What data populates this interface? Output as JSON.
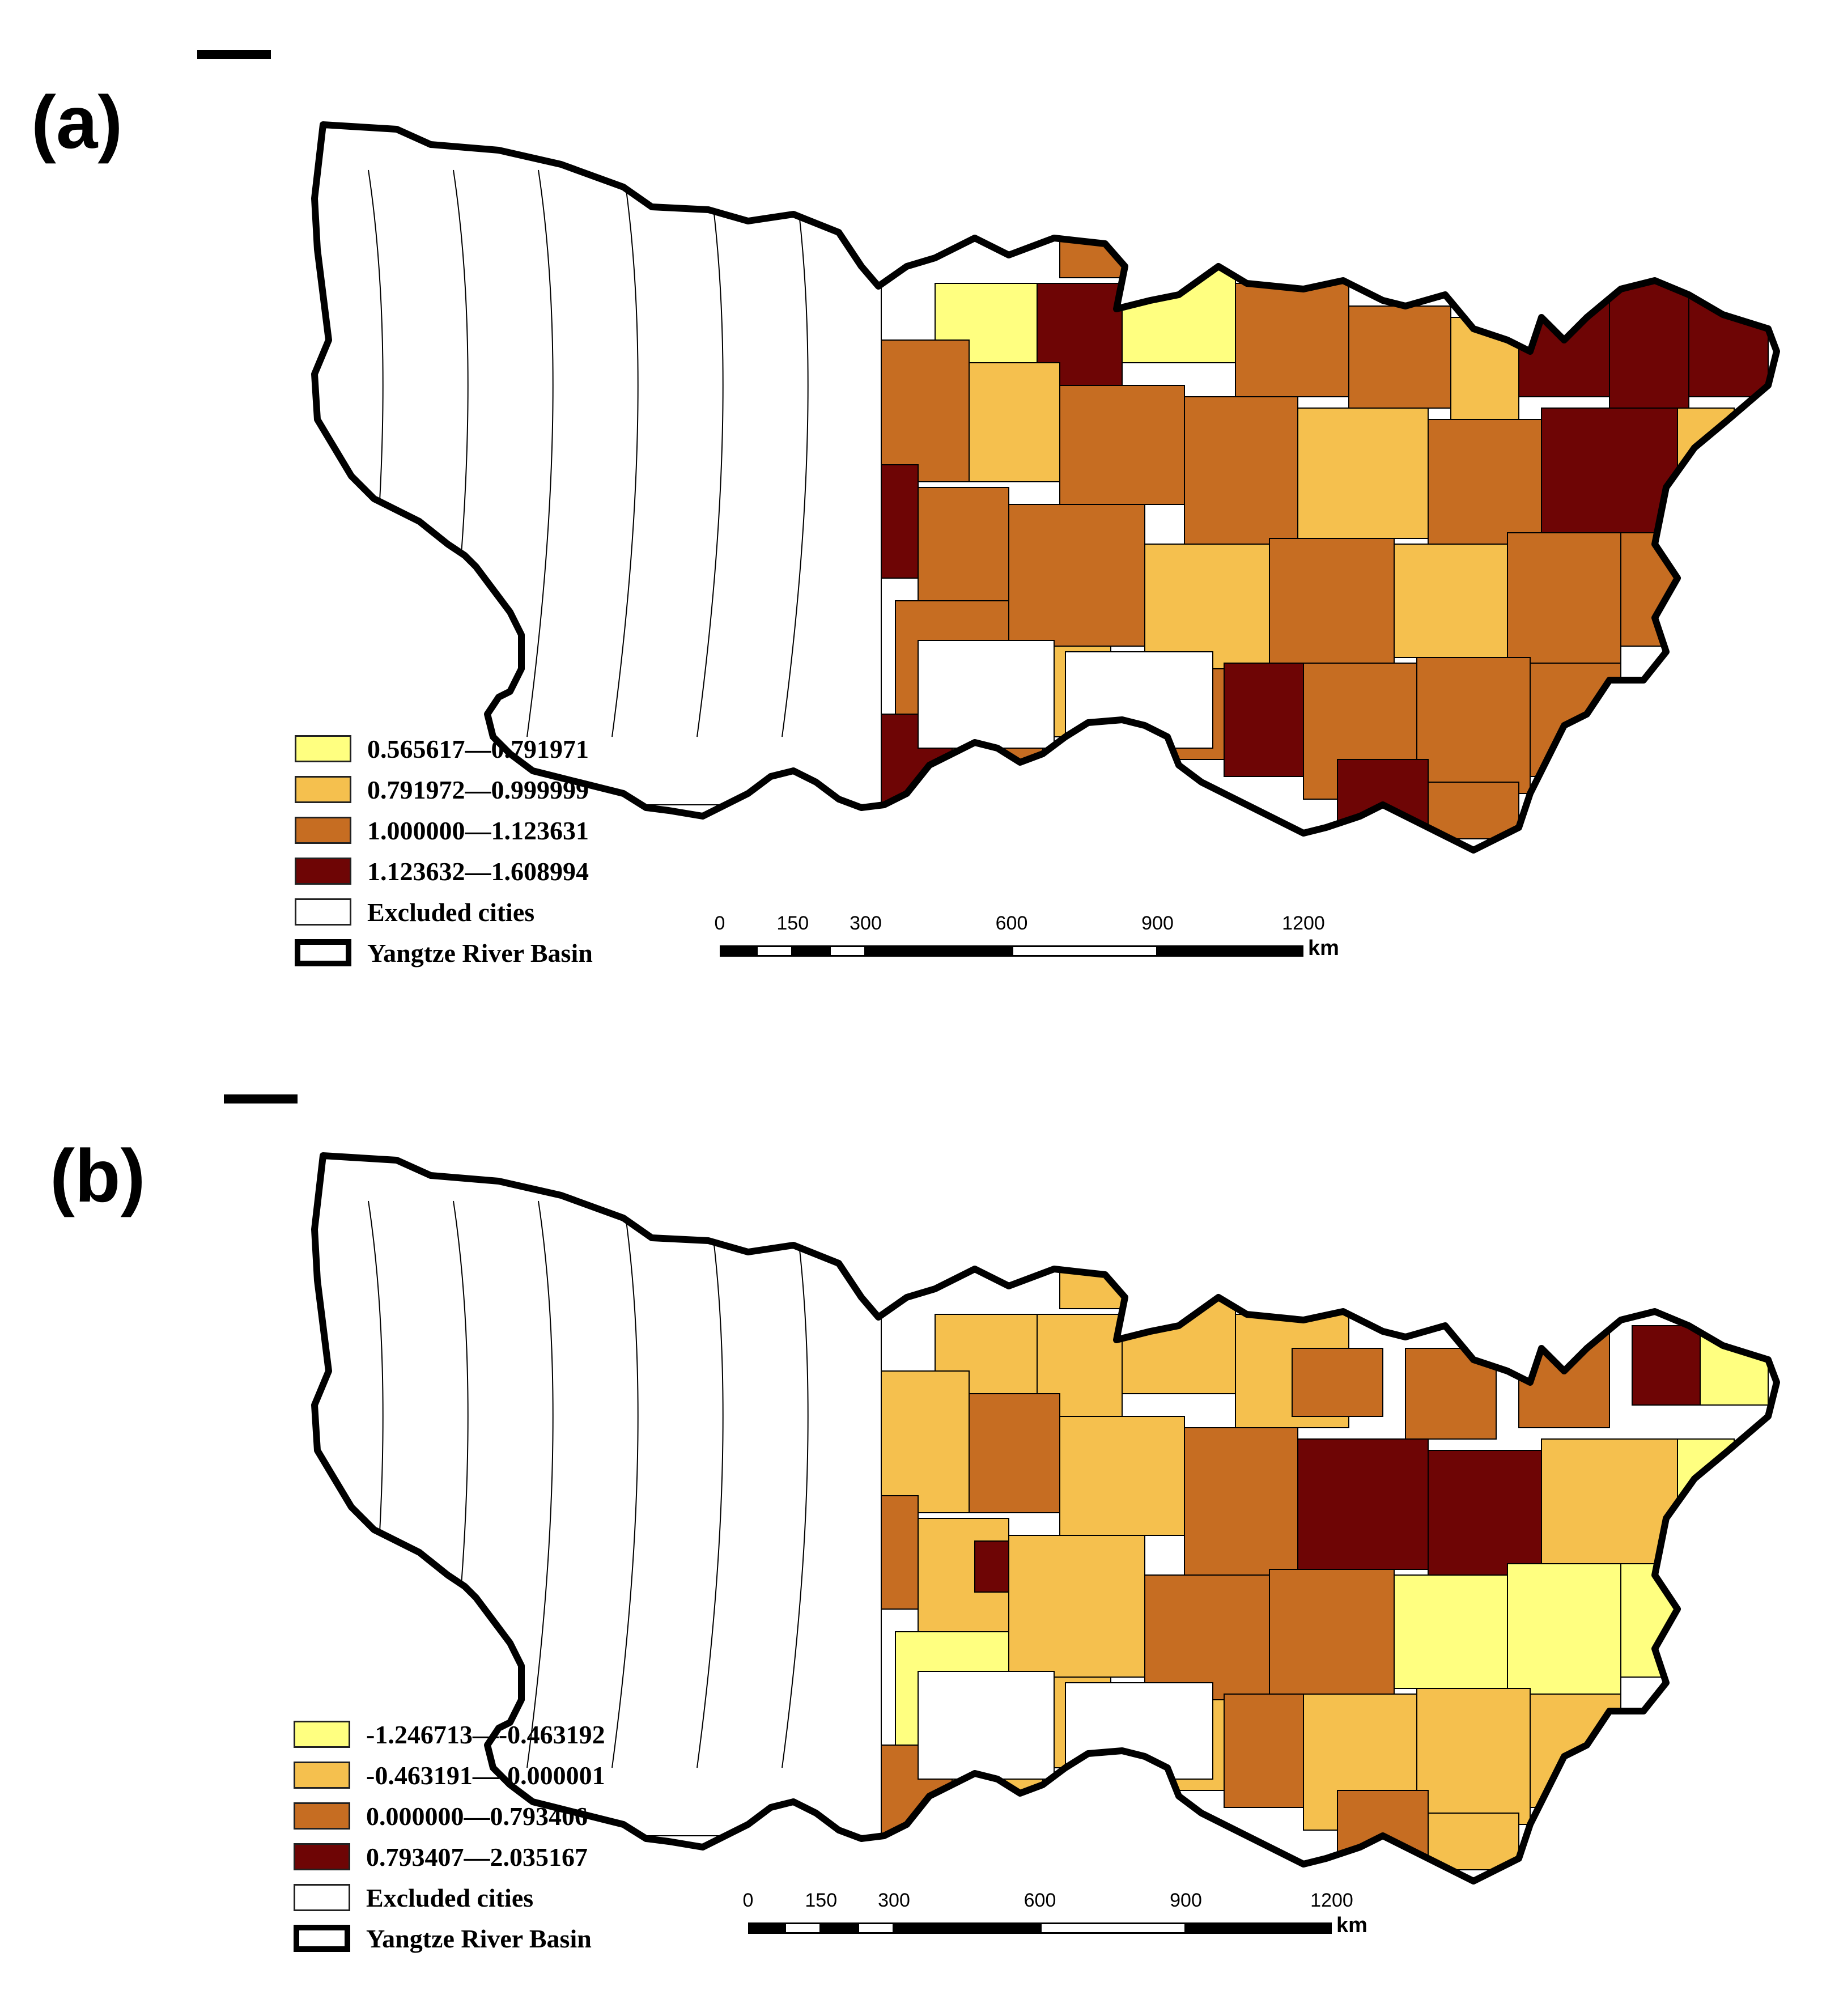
{
  "colors": {
    "c1": "#ffff80",
    "c2": "#f5c04e",
    "c3": "#c66d22",
    "c4": "#6e0505",
    "excluded": "#ffffff",
    "basin_outline": "#000000",
    "minor_fill": "#e6f7d0"
  },
  "panels": [
    {
      "label": "(a)",
      "legend": [
        {
          "text": "0.565617—0.791971",
          "color_key": "c1"
        },
        {
          "text": "0.791972—0.999999",
          "color_key": "c2"
        },
        {
          "text": "1.000000—1.123631",
          "color_key": "c3"
        },
        {
          "text": "1.123632—1.608994",
          "color_key": "c4"
        },
        {
          "text": "Excluded cities",
          "color_key": "excluded"
        },
        {
          "text": "Yangtze River Basin",
          "color_key": "basin"
        }
      ],
      "scale_labels": [
        "0",
        "150",
        "300",
        "600",
        "900",
        "1200"
      ],
      "scale_unit": "km"
    },
    {
      "label": "(b)",
      "legend": [
        {
          "text": "-1.246713—-0.463192",
          "color_key": "c1"
        },
        {
          "text": "-0.463191—-0.000001",
          "color_key": "c2"
        },
        {
          "text": "0.000000—0.793406",
          "color_key": "c3"
        },
        {
          "text": "0.793407—2.035167",
          "color_key": "c4"
        },
        {
          "text": "Excluded cities",
          "color_key": "excluded"
        },
        {
          "text": "Yangtze River Basin",
          "color_key": "basin"
        }
      ],
      "scale_labels": [
        "0",
        "150",
        "300",
        "600",
        "900",
        "1200"
      ],
      "scale_unit": "km"
    }
  ]
}
